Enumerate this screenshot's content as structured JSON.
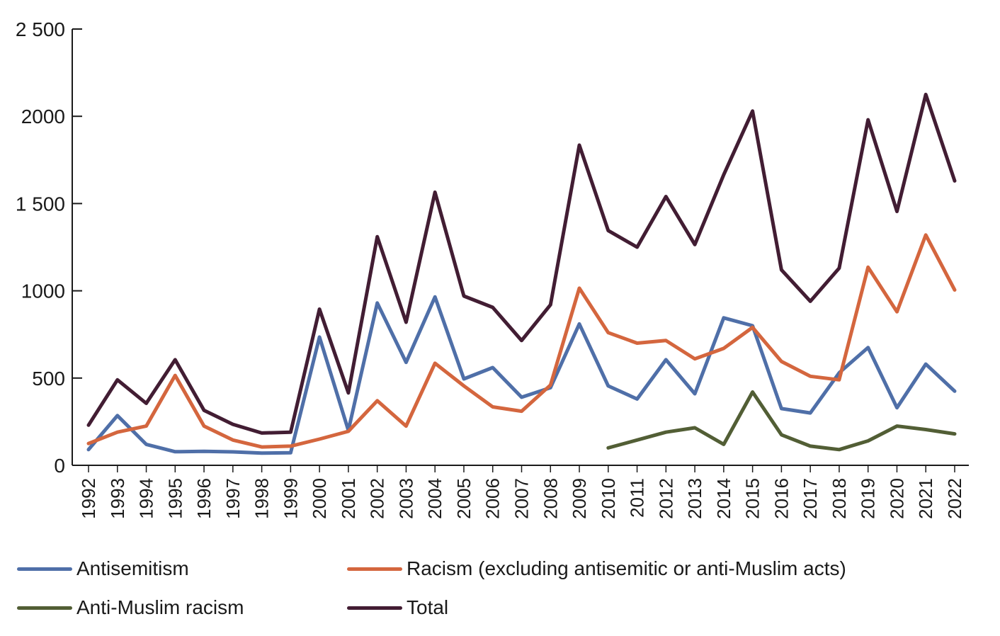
{
  "chart_data": {
    "type": "line",
    "title": "",
    "xlabel": "",
    "ylabel": "",
    "ylim": [
      0,
      2500
    ],
    "yticks": [
      0,
      500,
      1000,
      1500,
      2000,
      2500
    ],
    "ytick_labels": [
      "0",
      "500",
      "1000",
      "1 500",
      "2000",
      "2 500"
    ],
    "categories": [
      "1992",
      "1993",
      "1994",
      "1995",
      "1996",
      "1997",
      "1998",
      "1999",
      "2000",
      "2001",
      "2002",
      "2003",
      "2004",
      "2005",
      "2006",
      "2007",
      "2008",
      "2009",
      "2010",
      "2011",
      "2012",
      "2013",
      "2014",
      "2015",
      "2016",
      "2017",
      "2018",
      "2019",
      "2020",
      "2021",
      "2022"
    ],
    "series": [
      {
        "name": "Antisemitism",
        "color": "#4f6fa8",
        "values": [
          90,
          285,
          120,
          78,
          80,
          77,
          70,
          72,
          735,
          200,
          930,
          590,
          965,
          495,
          560,
          390,
          445,
          810,
          455,
          380,
          605,
          410,
          845,
          800,
          325,
          300,
          530,
          675,
          330,
          580,
          425
        ]
      },
      {
        "name": "Racism (excluding antisemitic or anti-Muslim acts)",
        "color": "#d4663e",
        "values": [
          125,
          190,
          225,
          515,
          225,
          145,
          105,
          110,
          150,
          195,
          370,
          225,
          585,
          455,
          335,
          310,
          460,
          1015,
          760,
          700,
          715,
          610,
          670,
          790,
          595,
          510,
          490,
          1135,
          880,
          1320,
          1005
        ]
      },
      {
        "name": "Anti-Muslim racism",
        "color": "#525e35",
        "values": [
          null,
          null,
          null,
          null,
          null,
          null,
          null,
          null,
          null,
          null,
          null,
          null,
          null,
          null,
          null,
          null,
          null,
          null,
          100,
          145,
          190,
          215,
          120,
          420,
          175,
          110,
          90,
          140,
          225,
          205,
          180
        ]
      },
      {
        "name": "Total",
        "color": "#421d33",
        "values": [
          230,
          490,
          355,
          605,
          315,
          235,
          185,
          190,
          895,
          415,
          1310,
          820,
          1565,
          970,
          905,
          715,
          920,
          1835,
          1345,
          1250,
          1540,
          1265,
          1665,
          2030,
          1120,
          940,
          1130,
          1980,
          1455,
          2125,
          1630
        ]
      }
    ],
    "legend": {
      "placement": "bottom",
      "items": [
        {
          "label": "Antisemitism",
          "color": "#4f6fa8"
        },
        {
          "label": "Racism (excluding antisemitic or anti-Muslim acts)",
          "color": "#d4663e"
        },
        {
          "label": "Anti-Muslim racism",
          "color": "#525e35"
        },
        {
          "label": "Total",
          "color": "#421d33"
        }
      ]
    }
  }
}
